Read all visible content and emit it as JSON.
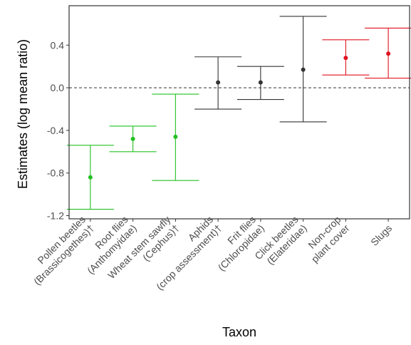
{
  "chart_data": {
    "type": "errorbar",
    "ylabel": "Estimates (log mean ratio)",
    "xlabel": "Taxon",
    "ylim": [
      -1.23,
      0.77
    ],
    "yticks": [
      {
        "value": -1.2,
        "label": "-1.2"
      },
      {
        "value": -0.8,
        "label": "-0.8"
      },
      {
        "value": -0.4,
        "label": "-0.4"
      },
      {
        "value": 0.0,
        "label": "0.0"
      },
      {
        "value": 0.4,
        "label": "0.4"
      }
    ],
    "reference_line": {
      "y": 0,
      "style": "dashed"
    },
    "grid": false,
    "colors": {
      "green": "#22c022",
      "dark": "#333333",
      "red": "#e0121f"
    },
    "points": [
      {
        "taxon": "Pollen beetles (Brassicogethes)†",
        "label_lines": [
          "Pollen beetles",
          "(Brassicogethes)†"
        ],
        "estimate": -0.84,
        "lower": -1.14,
        "upper": -0.54,
        "color": "green"
      },
      {
        "taxon": "Root flies (Anthomyidae)",
        "label_lines": [
          "Root flies",
          "(Anthomyidae)"
        ],
        "estimate": -0.48,
        "lower": -0.6,
        "upper": -0.36,
        "color": "green"
      },
      {
        "taxon": "Wheat stem sawfly (Cephus)†",
        "label_lines": [
          "Wheat stem sawfly",
          "(Cephus)†"
        ],
        "estimate": -0.46,
        "lower": -0.87,
        "upper": -0.06,
        "color": "green"
      },
      {
        "taxon": "Aphids (crop assessment)†",
        "label_lines": [
          "Aphids",
          "(crop assessment)†"
        ],
        "estimate": 0.05,
        "lower": -0.2,
        "upper": 0.29,
        "color": "dark"
      },
      {
        "taxon": "Frit flies (Chloropidae)",
        "label_lines": [
          "Frit flies",
          "(Chloropidae)"
        ],
        "estimate": 0.05,
        "lower": -0.11,
        "upper": 0.2,
        "color": "dark"
      },
      {
        "taxon": "Click beetles (Elateridae)",
        "label_lines": [
          "Click beetles",
          "(Elateridae)"
        ],
        "estimate": 0.17,
        "lower": -0.32,
        "upper": 0.67,
        "color": "dark"
      },
      {
        "taxon": "Non-crop plant cover",
        "label_lines": [
          "Non-crop",
          "plant cover"
        ],
        "estimate": 0.28,
        "lower": 0.12,
        "upper": 0.45,
        "color": "red"
      },
      {
        "taxon": "Slugs",
        "label_lines": [
          "Slugs"
        ],
        "estimate": 0.32,
        "lower": 0.09,
        "upper": 0.56,
        "color": "red"
      }
    ]
  }
}
